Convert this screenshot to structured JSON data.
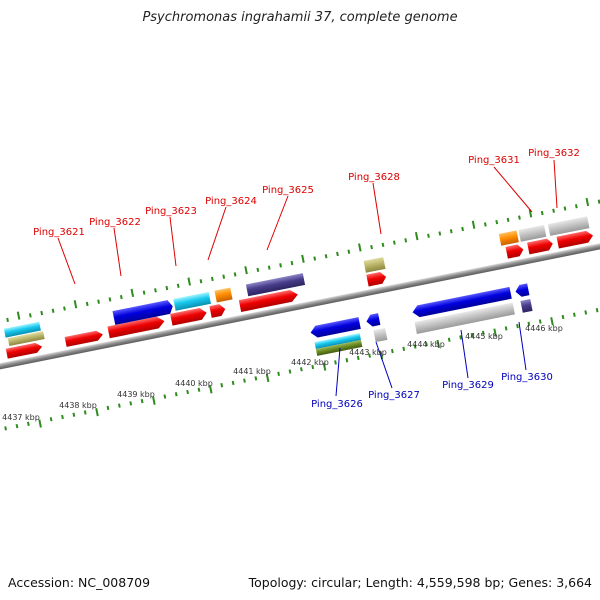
{
  "title": "Psychromonas ingrahamii 37, complete genome",
  "footer": {
    "accession": "Accession: NC_008709",
    "summary": "Topology: circular; Length: 4,559,598 bp; Genes: 3,664"
  },
  "colors": {
    "backbone": "#888888",
    "tick": "#2e8b1e",
    "forward_label": "#dd0000",
    "reverse_label": "#0000bb"
  },
  "scale_labels": [
    "4437 kbp",
    "4438 kbp",
    "4439 kbp",
    "4440 kbp",
    "4441 kbp",
    "4442 kbp",
    "4443 kbp",
    "4444 kbp",
    "4445 kbp",
    "4446 kbp"
  ],
  "gene_labels": {
    "forward": [
      "Ping_3621",
      "Ping_3622",
      "Ping_3623",
      "Ping_3624",
      "Ping_3625",
      "Ping_3628",
      "Ping_3631",
      "Ping_3632"
    ],
    "reverse": [
      "Ping_3626",
      "Ping_3627",
      "Ping_3629",
      "Ping_3630"
    ]
  }
}
